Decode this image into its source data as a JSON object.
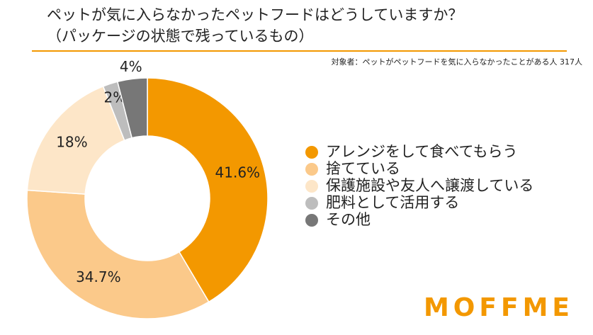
{
  "chart_data": {
    "type": "donut",
    "title": [
      "ペットが気に入らなかったペットフードはどうしていますか？",
      "（パッケージの状態で残っているもの）"
    ],
    "subtitle": "対象者：ペットがペットフードを気に入らなかったことがある人 317人",
    "categories": [
      "アレンジをして食べてもらう",
      "捨てている",
      "保護施設や友人へ譲渡している",
      "肥料として活用する",
      "その他"
    ],
    "values": [
      41.6,
      34.7,
      18,
      2,
      4
    ],
    "value_labels": [
      "41.6%",
      "34.7%",
      "18%",
      "2%",
      "4%"
    ],
    "colors": [
      "#f39800",
      "#fbc98a",
      "#fde6c8",
      "#bdbdbd",
      "#777777"
    ],
    "legend": "right",
    "logo": "MOFFME"
  }
}
